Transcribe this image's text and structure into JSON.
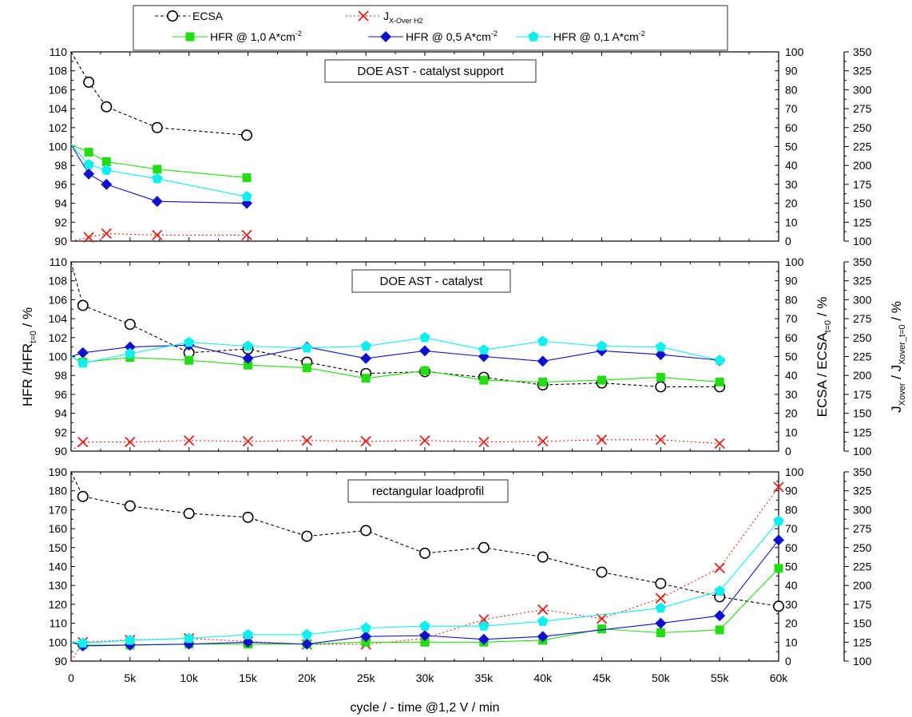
{
  "chart_data": {
    "type": "line",
    "xlabel": "cycle / - time @1,2 V  / min",
    "x_ticks": [
      "0",
      "5k",
      "10k",
      "15k",
      "20k",
      "25k",
      "30k",
      "35k",
      "40k",
      "45k",
      "50k",
      "55k",
      "60k"
    ],
    "x_tick_values": [
      0,
      5000,
      10000,
      15000,
      20000,
      25000,
      30000,
      35000,
      40000,
      45000,
      50000,
      55000,
      60000
    ],
    "xlim": [
      0,
      60000
    ],
    "ylabel_left": "HFR /HFR",
    "ylabel_left_sub": "t=0",
    "ylabel_left_unit": " / %",
    "ylabel_right1": "ECSA / ECSA",
    "ylabel_right1_sub": "t=0",
    "ylabel_right1_unit": "  /  %",
    "ylabel_right2": "J",
    "ylabel_right2_sub1": "Xover",
    "ylabel_right2_mid": " / J",
    "ylabel_right2_sub2": "Xover_t=0",
    "ylabel_right2_unit": "  /  %",
    "legend": [
      {
        "key": "ecsa",
        "label": "ECSA",
        "marker": "circle",
        "color": "#000000"
      },
      {
        "key": "jx",
        "label": "J",
        "sub": "X-Over H2",
        "marker": "cross",
        "color": "#e8201b"
      },
      {
        "key": "h10",
        "label": "HFR @ 1,0 A*cm",
        "sup": "-2",
        "marker": "square",
        "color": "#22dd11"
      },
      {
        "key": "h05",
        "label": "HFR @ 0,5 A*cm",
        "sup": "-2",
        "marker": "diamond",
        "color": "#1111cc"
      },
      {
        "key": "h01",
        "label": "HFR @ 0,1 A*cm",
        "sup": "-2",
        "marker": "pentagon",
        "color": "#11eeee"
      }
    ],
    "panels": [
      {
        "title": "DOE AST - catalyst support",
        "ylim_left": [
          90,
          110
        ],
        "left_ticks": [
          90,
          92,
          94,
          96,
          98,
          100,
          102,
          104,
          106,
          108,
          110
        ],
        "ylim_right1": [
          0,
          100
        ],
        "right1_ticks": [
          0,
          10,
          20,
          30,
          40,
          50,
          60,
          70,
          80,
          90,
          100
        ],
        "ylim_right2": [
          100,
          350
        ],
        "right2_ticks": [
          100,
          125,
          150,
          175,
          200,
          225,
          250,
          275,
          300,
          325,
          350
        ],
        "series": [
          {
            "key": "ecsa",
            "axis": "right1",
            "x": [
              0,
              1500,
              3000,
              7300,
              14900
            ],
            "y": [
              100,
              84,
              71,
              60,
              56
            ]
          },
          {
            "key": "jx",
            "axis": "right2",
            "x": [
              0,
              1500,
              3000,
              7300,
              14900
            ],
            "y": [
              100,
              105,
              110,
              108,
              108
            ]
          },
          {
            "key": "h10",
            "axis": "left",
            "x": [
              0,
              1500,
              3000,
              7300,
              14900
            ],
            "y": [
              100.2,
              99.4,
              98.4,
              97.6,
              96.7
            ]
          },
          {
            "key": "h05",
            "axis": "left",
            "x": [
              0,
              1500,
              3000,
              7300,
              14900
            ],
            "y": [
              100.2,
              97.1,
              96.0,
              94.2,
              94.0
            ]
          },
          {
            "key": "h01",
            "axis": "left",
            "x": [
              0,
              1500,
              3000,
              7300,
              14900
            ],
            "y": [
              100.2,
              98.1,
              97.5,
              96.6,
              94.7
            ]
          }
        ]
      },
      {
        "title": "DOE AST - catalyst",
        "ylim_left": [
          90,
          110
        ],
        "left_ticks": [
          90,
          92,
          94,
          96,
          98,
          100,
          102,
          104,
          106,
          108,
          110
        ],
        "ylim_right1": [
          0,
          100
        ],
        "right1_ticks": [
          0,
          10,
          20,
          30,
          40,
          50,
          60,
          70,
          80,
          90,
          100
        ],
        "ylim_right2": [
          100,
          350
        ],
        "right2_ticks": [
          100,
          125,
          150,
          175,
          200,
          225,
          250,
          275,
          300,
          325,
          350
        ],
        "series": [
          {
            "key": "ecsa",
            "axis": "right1",
            "x": [
              0,
              1000,
              5000,
              10000,
              15000,
              20000,
              25000,
              30000,
              35000,
              40000,
              45000,
              50000,
              55000
            ],
            "y": [
              100,
              77,
              67,
              52,
              54,
              47,
              41,
              42,
              39,
              35,
              36,
              34,
              34
            ]
          },
          {
            "key": "jx",
            "axis": "right2",
            "x": [
              0,
              1000,
              5000,
              10000,
              15000,
              20000,
              25000,
              30000,
              35000,
              40000,
              45000,
              50000,
              55000
            ],
            "y": [
              100,
              112,
              112,
              114,
              113,
              114,
              113,
              114,
              112,
              113,
              115,
              115,
              110
            ]
          },
          {
            "key": "h10",
            "axis": "left",
            "x": [
              0,
              1000,
              5000,
              10000,
              15000,
              20000,
              25000,
              30000,
              35000,
              40000,
              45000,
              50000,
              55000
            ],
            "y": [
              100.0,
              99.4,
              99.9,
              99.6,
              99.1,
              98.8,
              97.7,
              98.5,
              97.5,
              97.3,
              97.5,
              97.8,
              97.3
            ]
          },
          {
            "key": "h05",
            "axis": "left",
            "x": [
              0,
              1000,
              5000,
              10000,
              15000,
              20000,
              25000,
              30000,
              35000,
              40000,
              45000,
              50000,
              55000
            ],
            "y": [
              100.0,
              100.4,
              101.0,
              101.2,
              99.8,
              101.0,
              99.8,
              100.6,
              100.0,
              99.5,
              100.6,
              100.2,
              99.6
            ]
          },
          {
            "key": "h01",
            "axis": "left",
            "x": [
              0,
              1000,
              5000,
              10000,
              15000,
              20000,
              25000,
              30000,
              35000,
              40000,
              45000,
              50000,
              55000
            ],
            "y": [
              100.0,
              99.3,
              100.3,
              101.5,
              101.1,
              100.9,
              101.1,
              102.0,
              100.7,
              101.6,
              101.1,
              101.0,
              99.6
            ]
          }
        ]
      },
      {
        "title": "rectangular loadprofil",
        "ylim_left": [
          90,
          190
        ],
        "left_ticks": [
          90,
          100,
          110,
          120,
          130,
          140,
          150,
          160,
          170,
          180,
          190
        ],
        "ylim_right1": [
          0,
          100
        ],
        "right1_ticks": [
          0,
          10,
          20,
          30,
          40,
          50,
          60,
          70,
          80,
          90,
          100
        ],
        "ylim_right2": [
          100,
          350
        ],
        "right2_ticks": [
          100,
          125,
          150,
          175,
          200,
          225,
          250,
          275,
          300,
          325,
          350
        ],
        "series": [
          {
            "key": "ecsa",
            "axis": "right1",
            "x": [
              0,
              1000,
              5000,
              10000,
              15000,
              20000,
              25000,
              30000,
              35000,
              40000,
              45000,
              50000,
              55000,
              60000
            ],
            "y": [
              100,
              87,
              82,
              78,
              76,
              66,
              69,
              57,
              60,
              55,
              47,
              41,
              34,
              29
            ]
          },
          {
            "key": "jx",
            "axis": "right2",
            "x": [
              0,
              1000,
              5000,
              10000,
              15000,
              20000,
              25000,
              30000,
              35000,
              40000,
              45000,
              50000,
              55000,
              60000
            ],
            "y": [
              100,
              125,
              128,
              130,
              126,
              122,
              122,
              130,
              155,
              168,
              156,
              183,
              223,
              330
            ]
          },
          {
            "key": "h10",
            "axis": "left",
            "x": [
              0,
              1000,
              5000,
              10000,
              15000,
              20000,
              25000,
              30000,
              35000,
              40000,
              45000,
              50000,
              55000,
              60000
            ],
            "y": [
              100,
              98.5,
              98.5,
              99,
              99,
              99,
              100,
              100,
              100,
              101,
              107,
              105,
              106.5,
              139
            ]
          },
          {
            "key": "h05",
            "axis": "left",
            "x": [
              0,
              1000,
              5000,
              10000,
              15000,
              20000,
              25000,
              30000,
              35000,
              40000,
              45000,
              50000,
              55000,
              60000
            ],
            "y": [
              100,
              98,
              98.5,
              99,
              100,
              99,
              103,
              103.5,
              101.5,
              103,
              null,
              110,
              114,
              154
            ]
          },
          {
            "key": "h01",
            "axis": "left",
            "x": [
              0,
              1000,
              5000,
              10000,
              15000,
              20000,
              25000,
              30000,
              35000,
              40000,
              45000,
              50000,
              55000,
              60000
            ],
            "y": [
              100,
              99.5,
              101,
              102,
              104,
              104,
              107.5,
              108.5,
              108.5,
              111,
              null,
              118,
              127,
              164
            ]
          }
        ]
      }
    ]
  }
}
